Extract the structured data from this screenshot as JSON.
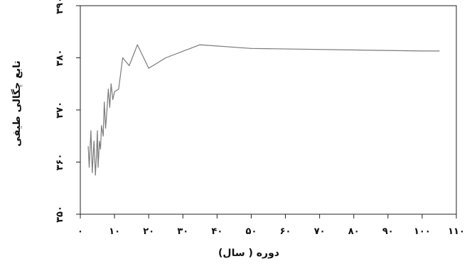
{
  "chart_data": {
    "type": "line",
    "xlabel": "دوره ( سال)",
    "ylabel": "تابع چگالی طیفی",
    "xlim": [
      0,
      110
    ],
    "ylim": [
      350,
      390
    ],
    "xticks": [
      0,
      10,
      20,
      30,
      40,
      50,
      60,
      70,
      80,
      90,
      100,
      110
    ],
    "yticks": [
      350,
      360,
      370,
      380,
      390
    ],
    "xtick_labels": [
      "۰",
      "۱۰",
      "۲۰",
      "۳۰",
      "۴۰",
      "۵۰",
      "۶۰",
      "۷۰",
      "۸۰",
      "۹۰",
      "۱۰۰",
      "۱۱۰"
    ],
    "ytick_labels": [
      "۳۵۰",
      "۳۶۰",
      "۳۷۰",
      "۳۸۰",
      "۳۹۰"
    ],
    "grid": false,
    "series": [
      {
        "color": "#7a7a7a",
        "x": [
          2.3,
          2.6,
          3.1,
          3.5,
          4.0,
          4.4,
          4.7,
          5.0,
          5.2,
          5.6,
          5.9,
          6.2,
          6.7,
          7.0,
          7.4,
          7.8,
          8.2,
          8.6,
          9.0,
          9.5,
          10.0,
          11.2,
          12.4,
          14.3,
          16.7,
          20.0,
          25.0,
          35.0,
          50.0,
          100.0,
          105.0
        ],
        "y": [
          363.0,
          359.0,
          366.0,
          358.0,
          364.0,
          357.5,
          361.0,
          366.0,
          359.0,
          364.0,
          362.5,
          367.0,
          365.0,
          371.5,
          366.5,
          370.0,
          374.0,
          370.5,
          375.0,
          372.0,
          373.5,
          374.0,
          380.0,
          378.5,
          382.5,
          378.0,
          380.0,
          382.5,
          381.8,
          381.3,
          381.3
        ]
      }
    ]
  }
}
